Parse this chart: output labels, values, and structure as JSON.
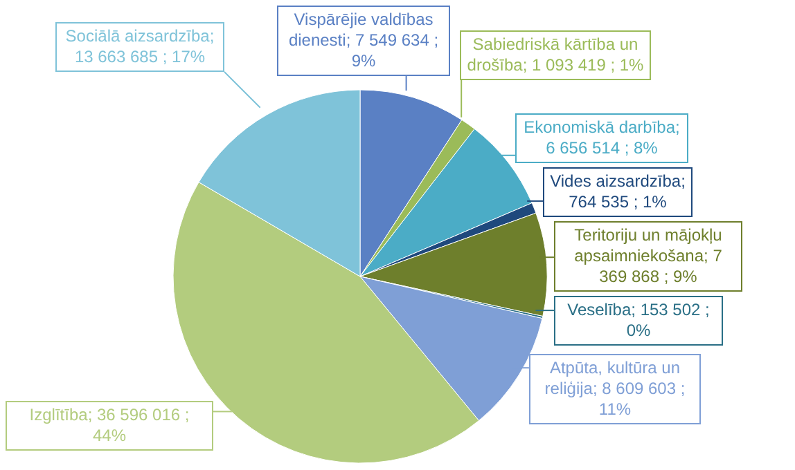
{
  "chart_data": {
    "type": "pie",
    "categories": [
      "Vispārējie valdības dienesti",
      "Sabiedriskā kārtība un drošība",
      "Ekonomiskā darbība",
      "Vides aizsardzība",
      "Teritoriju un mājokļu apsaimniekošana",
      "Veselība",
      "Atpūta, kultūra un reliģija",
      "Izglītība",
      "Sociālā aizsardzība"
    ],
    "values": [
      7549634,
      1093419,
      6656514,
      764535,
      7369868,
      153502,
      8609603,
      36596016,
      13663685
    ],
    "value_labels": [
      "; 7 549 634 ; 9%",
      "; 1 093 419 ; 1%",
      "; 6 656 514 ; 8%",
      "; 764 535 ; 1%",
      "; 7 369 868 ; 9%",
      "; 153 502 ; 0%",
      "; 8 609 603 ; 11%",
      "; 36 596 016 ; 44%",
      "; 13 663 685 ; 17%"
    ],
    "colors": [
      "#5a80c4",
      "#9bbb59",
      "#4bacc6",
      "#1f497d",
      "#6e7f2c",
      "#2a6f86",
      "#7f9fd6",
      "#b3cc7e",
      "#7fc3d9"
    ]
  }
}
